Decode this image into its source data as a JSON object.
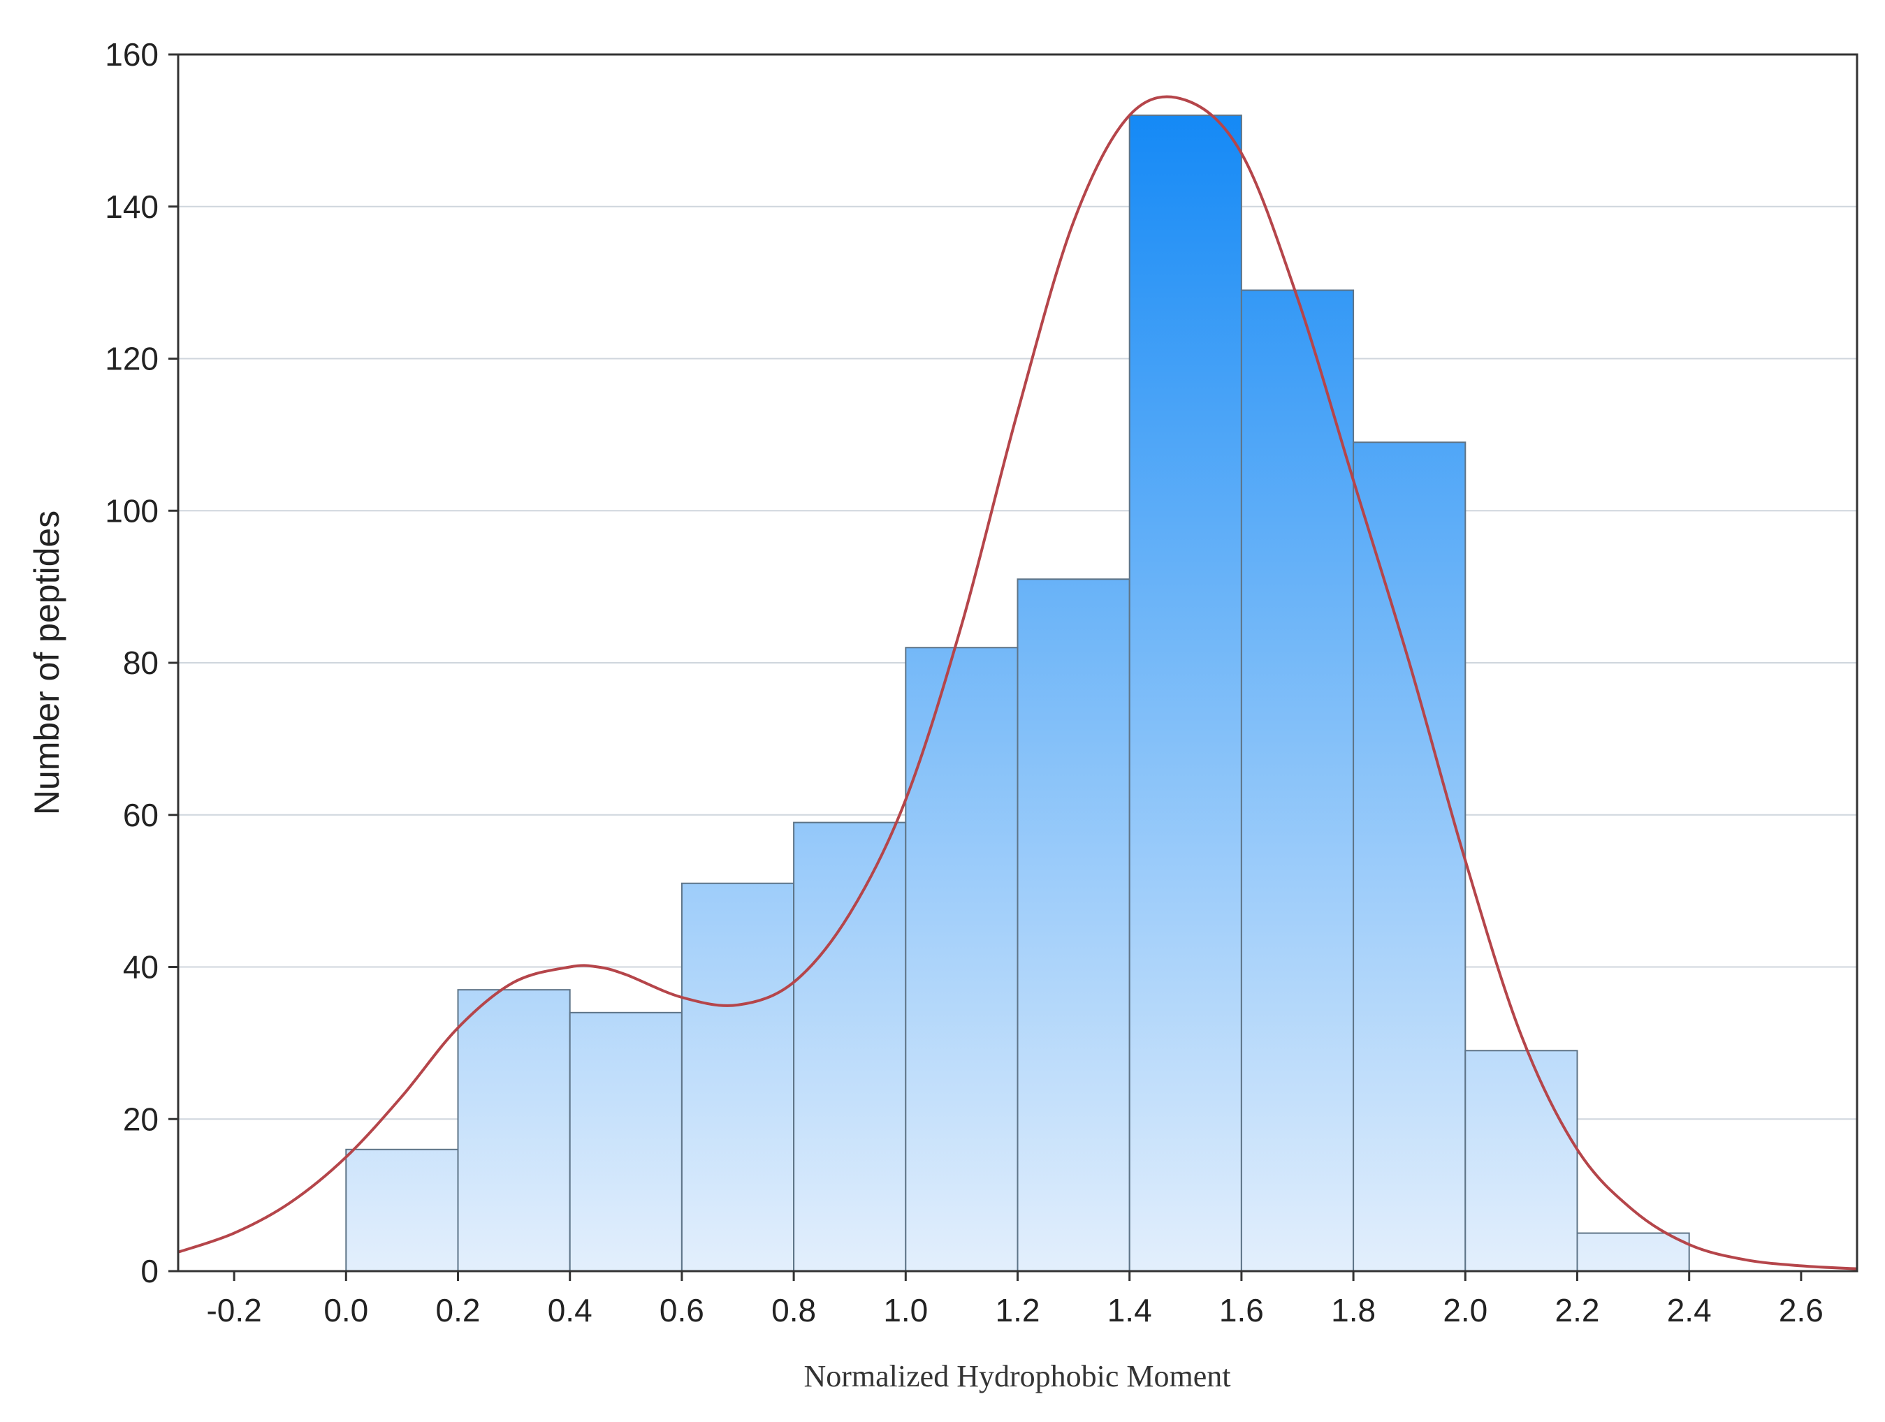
{
  "chart_data": {
    "type": "bar",
    "subtype": "histogram",
    "xlabel": "Normalized Hydrophobic Moment",
    "ylabel": "Number of peptides",
    "xlim": [
      -0.3,
      2.7
    ],
    "ylim": [
      0,
      160
    ],
    "xticks": [
      "-0.2",
      "0.0",
      "0.2",
      "0.4",
      "0.6",
      "0.8",
      "1.0",
      "1.2",
      "1.4",
      "1.6",
      "1.8",
      "2.0",
      "2.2",
      "2.4",
      "2.6"
    ],
    "yticks": [
      "0",
      "20",
      "40",
      "60",
      "80",
      "100",
      "120",
      "140",
      "160"
    ],
    "grid": "horizontal",
    "bins": [
      {
        "x0": 0.0,
        "x1": 0.2,
        "count": 16
      },
      {
        "x0": 0.2,
        "x1": 0.4,
        "count": 37
      },
      {
        "x0": 0.4,
        "x1": 0.6,
        "count": 34
      },
      {
        "x0": 0.6,
        "x1": 0.8,
        "count": 51
      },
      {
        "x0": 0.8,
        "x1": 1.0,
        "count": 59
      },
      {
        "x0": 1.0,
        "x1": 1.2,
        "count": 82
      },
      {
        "x0": 1.2,
        "x1": 1.4,
        "count": 91
      },
      {
        "x0": 1.4,
        "x1": 1.6,
        "count": 152
      },
      {
        "x0": 1.6,
        "x1": 1.8,
        "count": 129
      },
      {
        "x0": 1.8,
        "x1": 2.0,
        "count": 109
      },
      {
        "x0": 2.0,
        "x1": 2.2,
        "count": 29
      },
      {
        "x0": 2.2,
        "x1": 2.4,
        "count": 5
      }
    ],
    "density_curve": {
      "x": [
        -0.3,
        -0.2,
        -0.1,
        0.0,
        0.1,
        0.2,
        0.3,
        0.4,
        0.45,
        0.5,
        0.6,
        0.7,
        0.8,
        0.9,
        1.0,
        1.1,
        1.2,
        1.3,
        1.4,
        1.5,
        1.6,
        1.7,
        1.8,
        1.9,
        2.0,
        2.1,
        2.2,
        2.3,
        2.4,
        2.5,
        2.6,
        2.7
      ],
      "y": [
        2.5,
        5,
        9,
        15,
        23,
        32,
        38,
        40,
        40,
        39,
        36,
        35,
        38,
        47,
        62,
        85,
        113,
        138,
        152,
        154,
        147,
        128,
        104,
        80,
        54,
        31,
        16,
        8,
        3.5,
        1.5,
        0.7,
        0.3
      ]
    },
    "colors": {
      "bar_top": "#0a84f5",
      "bar_bottom": "#e3effc",
      "bar_edge": "#5e7487",
      "curve": "#b5454a",
      "grid": "#cfd6dd"
    }
  }
}
